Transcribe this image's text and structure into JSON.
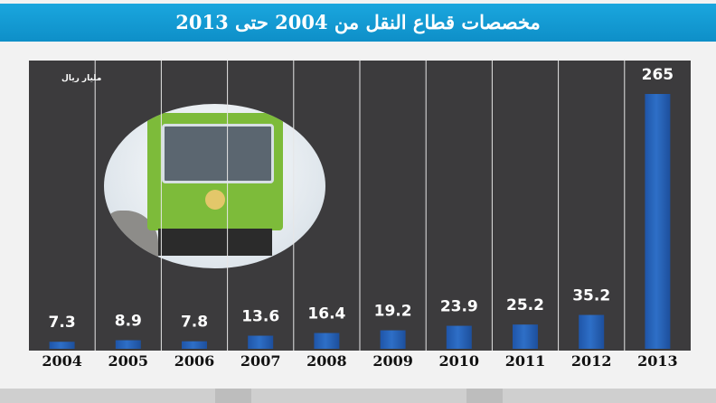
{
  "title": "مخصصات قطاع النقل من 2004 حتى 2013",
  "unit_label": "مليار ريال",
  "colors": {
    "title_bar": "#1aa6de",
    "plot_background": "#3c3b3d",
    "bar": "#2e6fc7",
    "value_text": "#ffffff",
    "year_text": "#111111"
  },
  "chart_data": {
    "type": "bar",
    "title": "مخصصات قطاع النقل من 2004 حتى 2013",
    "ylabel": "مليار ريال",
    "xlabel": "",
    "categories": [
      "2004",
      "2005",
      "2006",
      "2007",
      "2008",
      "2009",
      "2010",
      "2011",
      "2012",
      "2013"
    ],
    "values": [
      7.3,
      8.9,
      7.8,
      13.6,
      16.4,
      19.2,
      23.9,
      25.2,
      35.2,
      265
    ],
    "value_labels": [
      "7.3",
      "8.9",
      "7.8",
      "13.6",
      "16.4",
      "19.2",
      "23.9",
      "25.2",
      "35.2",
      "265"
    ],
    "ylim": [
      0,
      265
    ],
    "grid": false,
    "legend": "none"
  }
}
